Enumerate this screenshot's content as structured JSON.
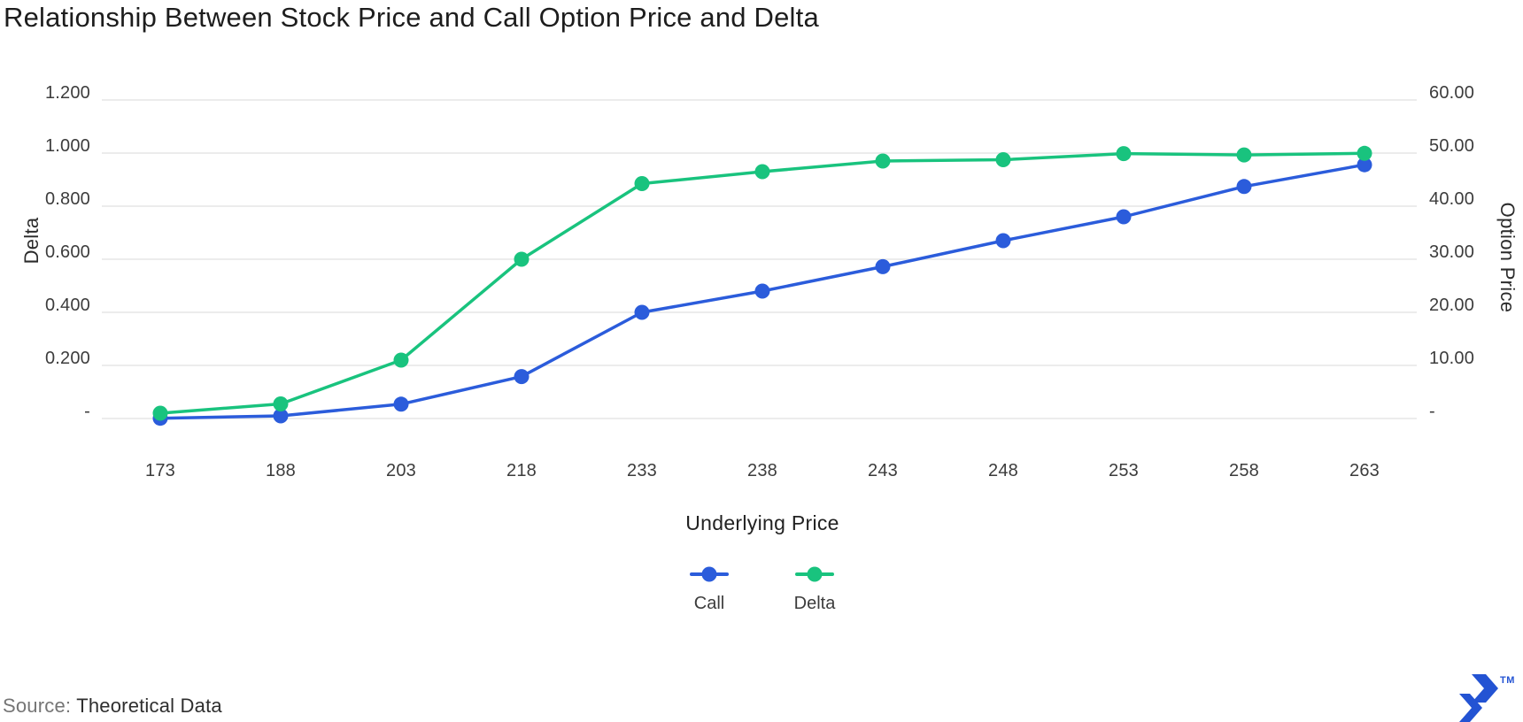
{
  "title": "Relationship Between Stock Price and Call Option Price and Delta",
  "source": {
    "label": "Source:",
    "value": "Theoretical Data"
  },
  "branding": {
    "logo": "toptal-logo",
    "trademark": "TM"
  },
  "colors": {
    "call": "#2b5cdb",
    "delta": "#19c37e",
    "grid": "#ececec",
    "logo": "#2353d3"
  },
  "chart_data": {
    "type": "line",
    "title": "Relationship Between Stock Price and Call Option Price and Delta",
    "xlabel": "Underlying Price",
    "ylabel_left": "Delta",
    "ylabel_right": "Option Price",
    "categories": [
      "173",
      "188",
      "203",
      "218",
      "233",
      "238",
      "243",
      "248",
      "253",
      "258",
      "263"
    ],
    "series": [
      {
        "name": "Call",
        "axis": "right",
        "color_key": "call",
        "values": [
          0.05,
          0.5,
          2.7,
          7.9,
          20.0,
          24.0,
          28.6,
          33.5,
          38.0,
          43.7,
          47.8
        ]
      },
      {
        "name": "Delta",
        "axis": "left",
        "color_key": "delta",
        "values": [
          0.02,
          0.055,
          0.22,
          0.6,
          0.885,
          0.93,
          0.97,
          0.975,
          0.998,
          0.993,
          0.999
        ]
      }
    ],
    "left_axis": {
      "label": "Delta",
      "ticks": [
        "1.200",
        "1.000",
        "0.800",
        "0.600",
        "0.400",
        "0.200",
        "-"
      ],
      "tick_values": [
        1.2,
        1.0,
        0.8,
        0.6,
        0.4,
        0.2,
        0
      ],
      "range": [
        0,
        1.2
      ]
    },
    "right_axis": {
      "label": "Option Price",
      "ticks": [
        "60.00",
        "50.00",
        "40.00",
        "30.00",
        "20.00",
        "10.00",
        "-"
      ],
      "tick_values": [
        60,
        50,
        40,
        30,
        20,
        10,
        0
      ],
      "range": [
        0,
        60
      ]
    },
    "legend": [
      "Call",
      "Delta"
    ],
    "legend_position": "bottom",
    "grid": true
  }
}
